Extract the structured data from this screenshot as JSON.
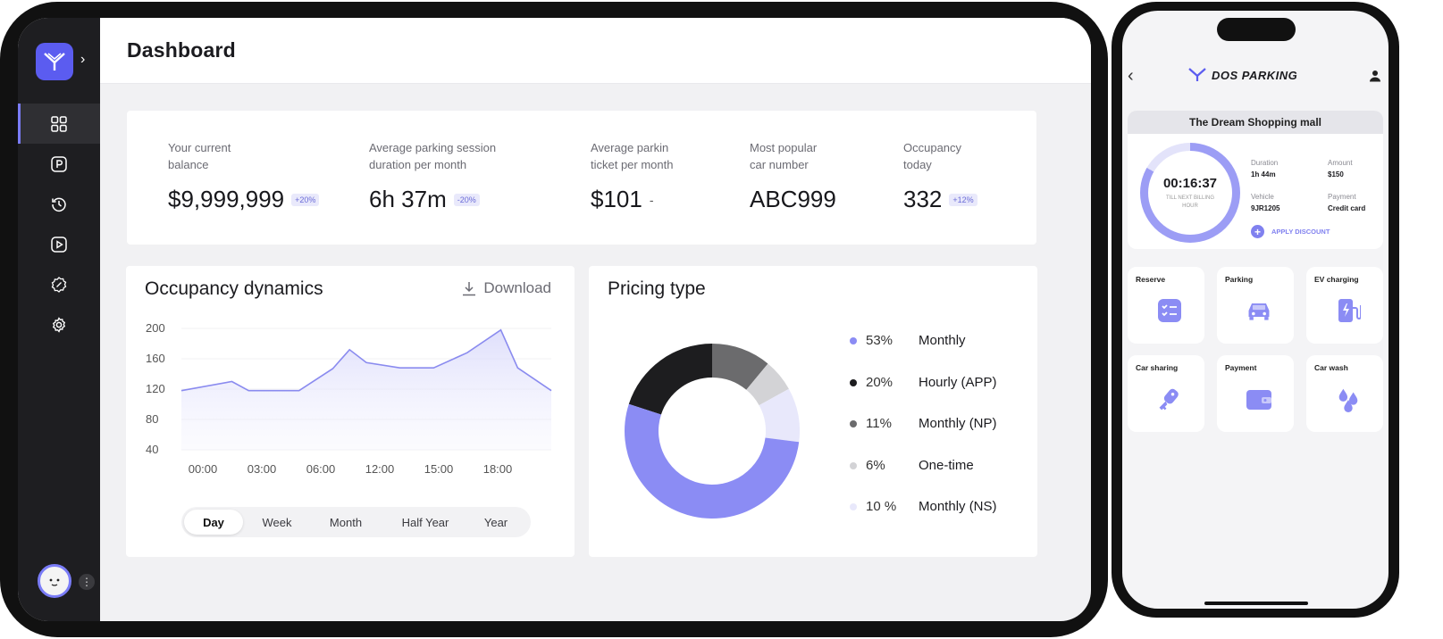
{
  "dashboard": {
    "title": "Dashboard",
    "stats": [
      {
        "label": "Your current\nbalance",
        "value": "$9,999,999",
        "badge": "+20%"
      },
      {
        "label": "Average parking session\nduration per month",
        "value": "6h 37m",
        "badge": "-20%"
      },
      {
        "label": "Average parkin\nticket per month",
        "value": "$101",
        "badge": "-"
      },
      {
        "label": "Most popular\ncar number",
        "value": "ABC999",
        "badge": ""
      },
      {
        "label": "Occupancy\ntoday",
        "value": "332",
        "badge": "+12%"
      }
    ]
  },
  "occupancy": {
    "title": "Occupancy dynamics",
    "download_label": "Download",
    "ranges": [
      "Day",
      "Week",
      "Month",
      "Half Year",
      "Year"
    ],
    "active_range": "Day"
  },
  "pricing": {
    "title": "Pricing type"
  },
  "chart_data": [
    {
      "type": "area",
      "y_ticks": [
        200,
        160,
        120,
        80,
        40
      ],
      "x_ticks": [
        "00:00",
        "03:00",
        "06:00",
        "12:00",
        "15:00",
        "18:00"
      ],
      "x": [
        0,
        3,
        4,
        7,
        9,
        10,
        11,
        13,
        15,
        17,
        19,
        20,
        22
      ],
      "values": [
        118,
        130,
        118,
        118,
        147,
        172,
        155,
        148,
        148,
        168,
        198,
        148,
        118
      ],
      "ylim": [
        40,
        200
      ],
      "color": "#8a8bef",
      "grid": true
    },
    {
      "type": "pie",
      "donut": true,
      "slices": [
        {
          "label": "Monthly",
          "value": 53,
          "pct_label": "53%",
          "color": "#8b8cf4"
        },
        {
          "label": "Hourly (APP)",
          "value": 20,
          "pct_label": "20%",
          "color": "#1d1d1f"
        },
        {
          "label": "Monthly (NP)",
          "value": 11,
          "pct_label": "11%",
          "color": "#6b6b6d"
        },
        {
          "label": "One-time",
          "value": 6,
          "pct_label": "6%",
          "color": "#d3d3d6"
        },
        {
          "label": "Monthly (NS)",
          "value": 10,
          "pct_label": "10 %",
          "color": "#e8e8fb"
        }
      ]
    }
  ],
  "phone": {
    "brand": "DOS PARKING",
    "location": "The Dream Shopping mall",
    "timer": "00:16:37",
    "timer_caption": "TILL NEXT BILLING HOUR",
    "timer_progress": 0.83,
    "duration_label": "Duration",
    "duration_value": "1h 44m",
    "amount_label": "Amount",
    "amount_value": "$150",
    "vehicle_label": "Vehicle",
    "vehicle_value": "9JR1205",
    "payment_label": "Payment",
    "payment_value": "Credit card",
    "discount_label": "APPLY DISCOUNT",
    "tiles": [
      "Reserve",
      "Parking",
      "EV charging",
      "Car sharing",
      "Payment",
      "Car wash"
    ]
  },
  "colors": {
    "accent": "#5b5cf0",
    "sidebar": "#1e1e21"
  }
}
